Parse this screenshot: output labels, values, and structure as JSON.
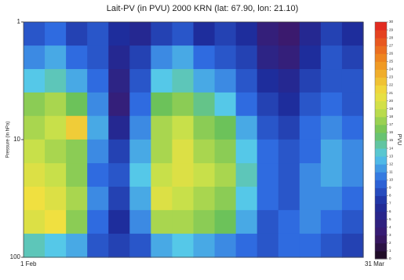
{
  "chart_data": {
    "type": "heatmap",
    "title": "Lait-PV (in PVU) 2000 KRN (lat: 67.90, lon: 21.10)",
    "y_label": "Pressure (in hPa)",
    "colorbar_label": "PVU",
    "categories": [
      "1 Feb",
      null,
      null,
      null,
      null,
      null,
      null,
      null,
      null,
      null,
      null,
      null,
      null,
      null,
      null,
      "31 Mar"
    ],
    "y": [
      1.26,
      2,
      3.16,
      5,
      7.9,
      12.6,
      20,
      31.6,
      50,
      79.4
    ],
    "ylim": [
      1,
      100
    ],
    "yticks": [
      1,
      10,
      100
    ],
    "ylog": true,
    "yreversed": true,
    "z": [
      [
        9,
        10,
        8,
        9,
        7,
        6,
        8,
        9,
        7,
        8,
        7,
        4,
        3,
        6,
        8,
        7
      ],
      [
        11,
        12,
        10,
        9,
        6,
        8,
        11,
        12,
        10,
        9,
        8,
        5,
        4,
        7,
        9,
        8
      ],
      [
        13,
        14,
        12,
        10,
        5,
        9,
        13,
        14,
        12,
        11,
        9,
        7,
        6,
        8,
        9,
        9
      ],
      [
        17,
        18,
        16,
        11,
        4,
        10,
        16,
        17,
        15,
        13,
        10,
        8,
        7,
        9,
        10,
        9
      ],
      [
        18,
        19,
        22,
        12,
        6,
        11,
        18,
        19,
        17,
        16,
        12,
        9,
        8,
        10,
        11,
        10
      ],
      [
        19,
        18,
        17,
        11,
        8,
        12,
        18,
        20,
        18,
        17,
        13,
        10,
        9,
        10,
        12,
        11
      ],
      [
        20,
        19,
        17,
        10,
        9,
        13,
        19,
        20,
        19,
        18,
        14,
        10,
        9,
        11,
        12,
        11
      ],
      [
        21,
        20,
        18,
        11,
        8,
        12,
        20,
        19,
        18,
        17,
        13,
        10,
        9,
        11,
        11,
        10
      ],
      [
        20,
        21,
        17,
        10,
        7,
        11,
        18,
        18,
        17,
        16,
        12,
        9,
        10,
        11,
        10,
        9
      ],
      [
        14,
        13,
        12,
        9,
        8,
        9,
        12,
        13,
        12,
        11,
        10,
        9,
        10,
        10,
        9,
        8
      ]
    ],
    "clim": [
      0,
      30
    ],
    "cticks": [
      0,
      1,
      2,
      3,
      4,
      5,
      6,
      7,
      8,
      9,
      10,
      11,
      12,
      13,
      14,
      15,
      16,
      17,
      18,
      19,
      20,
      21,
      22,
      23,
      24,
      25,
      26,
      27,
      28,
      29,
      30
    ],
    "colorscale": [
      [
        0,
        "#1a0a1a"
      ],
      [
        3,
        "#3b1a6e"
      ],
      [
        7,
        "#1e2d9c"
      ],
      [
        10,
        "#2f6be0"
      ],
      [
        13,
        "#55c8e8"
      ],
      [
        16,
        "#6cc25a"
      ],
      [
        19,
        "#c8e04a"
      ],
      [
        21,
        "#f0e040"
      ],
      [
        25,
        "#f09020"
      ],
      [
        30,
        "#e02020"
      ]
    ]
  }
}
